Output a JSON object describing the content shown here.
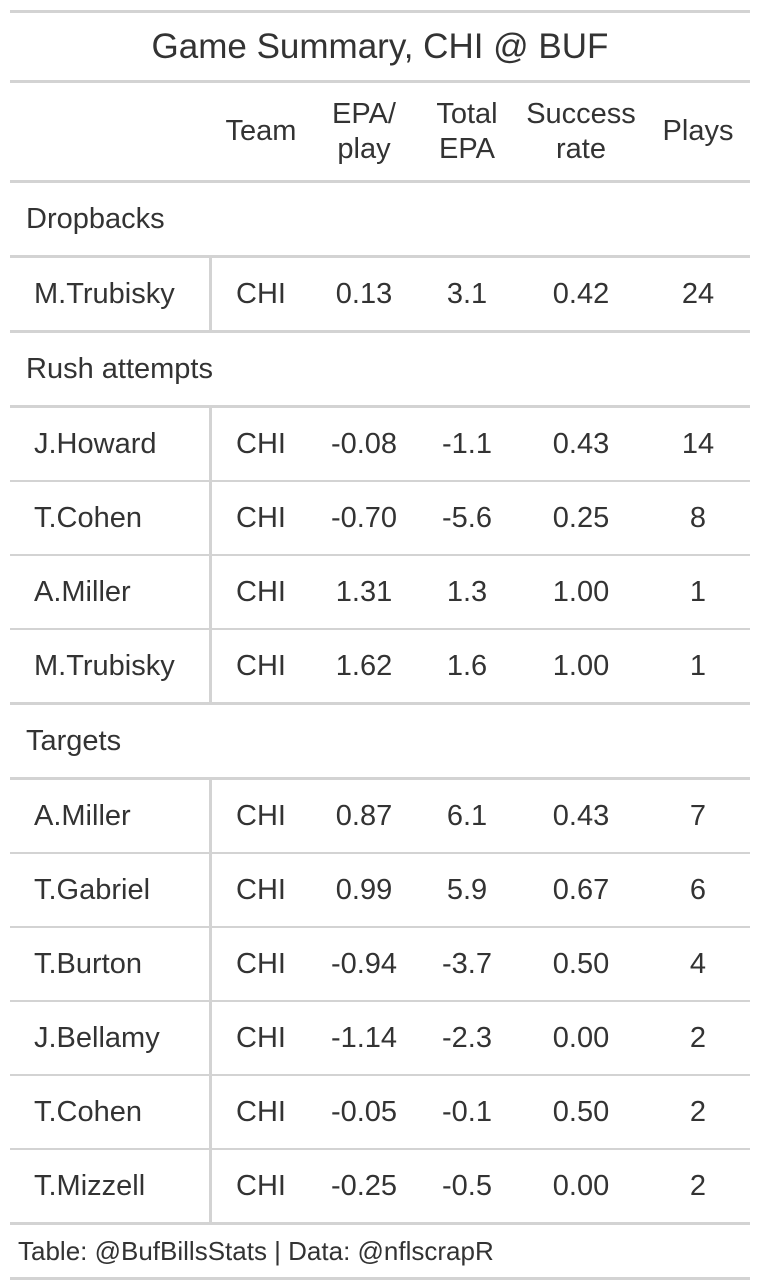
{
  "title": "Game Summary, CHI @ BUF",
  "columns": [
    "",
    "Team",
    "EPA/\nplay",
    "Total\nEPA",
    "Success\nrate",
    "Plays"
  ],
  "source_note": "Table: @BufBillsStats | Data: @nflscrapR",
  "chart_data": {
    "type": "table",
    "title": "Game Summary, CHI @ BUF",
    "columns": [
      "",
      "Team",
      "EPA/play",
      "Total EPA",
      "Success rate",
      "Plays"
    ],
    "groups": [
      {
        "label": "Dropbacks",
        "rows": [
          {
            "player": "M.Trubisky",
            "team": "CHI",
            "epa_play": "0.13",
            "total_epa": "3.1",
            "success_rate": "0.42",
            "plays": "24"
          }
        ]
      },
      {
        "label": "Rush attempts",
        "rows": [
          {
            "player": "J.Howard",
            "team": "CHI",
            "epa_play": "-0.08",
            "total_epa": "-1.1",
            "success_rate": "0.43",
            "plays": "14"
          },
          {
            "player": "T.Cohen",
            "team": "CHI",
            "epa_play": "-0.70",
            "total_epa": "-5.6",
            "success_rate": "0.25",
            "plays": "8"
          },
          {
            "player": "A.Miller",
            "team": "CHI",
            "epa_play": "1.31",
            "total_epa": "1.3",
            "success_rate": "1.00",
            "plays": "1"
          },
          {
            "player": "M.Trubisky",
            "team": "CHI",
            "epa_play": "1.62",
            "total_epa": "1.6",
            "success_rate": "1.00",
            "plays": "1"
          }
        ]
      },
      {
        "label": "Targets",
        "rows": [
          {
            "player": "A.Miller",
            "team": "CHI",
            "epa_play": "0.87",
            "total_epa": "6.1",
            "success_rate": "0.43",
            "plays": "7"
          },
          {
            "player": "T.Gabriel",
            "team": "CHI",
            "epa_play": "0.99",
            "total_epa": "5.9",
            "success_rate": "0.67",
            "plays": "6"
          },
          {
            "player": "T.Burton",
            "team": "CHI",
            "epa_play": "-0.94",
            "total_epa": "-3.7",
            "success_rate": "0.50",
            "plays": "4"
          },
          {
            "player": "J.Bellamy",
            "team": "CHI",
            "epa_play": "-1.14",
            "total_epa": "-2.3",
            "success_rate": "0.00",
            "plays": "2"
          },
          {
            "player": "T.Cohen",
            "team": "CHI",
            "epa_play": "-0.05",
            "total_epa": "-0.1",
            "success_rate": "0.50",
            "plays": "2"
          },
          {
            "player": "T.Mizzell",
            "team": "CHI",
            "epa_play": "-0.25",
            "total_epa": "-0.5",
            "success_rate": "0.00",
            "plays": "2"
          }
        ]
      }
    ]
  }
}
